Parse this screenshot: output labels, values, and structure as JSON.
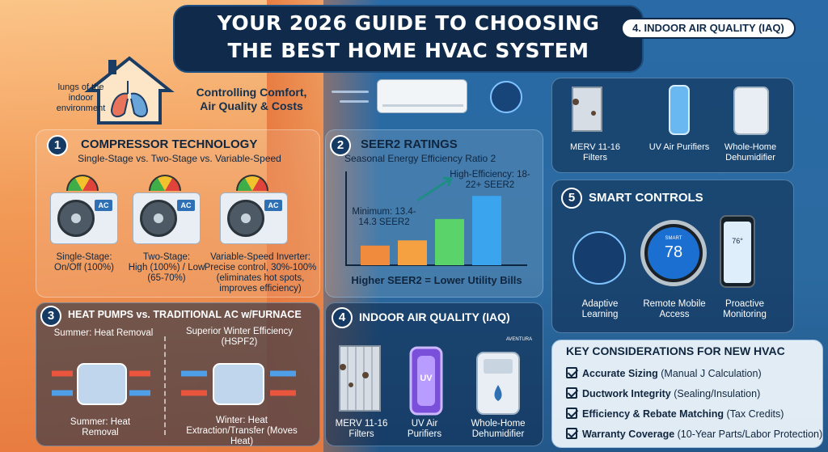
{
  "title": {
    "line1": "YOUR 2026 GUIDE TO CHOOSING",
    "line2": "THE BEST HOME HVAC SYSTEM"
  },
  "header_tag": "4. INDOOR AIR QUALITY (IAQ)",
  "intro": {
    "house_text": "lungs of the indoor environment",
    "subtitle": "Controlling Comfort, Air Quality & Costs"
  },
  "compressor": {
    "number": "1",
    "title": "COMPRESSOR TECHNOLOGY",
    "subtitle": "Single-Stage vs. Two-Stage vs. Variable-Speed",
    "units": [
      {
        "badge": "AC",
        "name": "Single-Stage:",
        "desc": "On/Off (100%)"
      },
      {
        "badge": "AC",
        "name": "Two-Stage:",
        "desc": "High (100%) / Low (65-70%)"
      },
      {
        "badge": "AC",
        "name": "Variable-Speed Inverter:",
        "desc": "Precise control, 30%-100% (eliminates hot spots, improves efficiency)"
      }
    ]
  },
  "seer": {
    "number": "2",
    "title": "SEER2 RATINGS",
    "subtitle": "Seasonal Energy Efficiency Ratio 2",
    "minimum": "Minimum: 13.4-14.3 SEER2",
    "high": "High-Efficiency: 18-22+ SEER2",
    "footer": "Higher SEER2 = Lower Utility Bills",
    "bars": [
      {
        "value": 13.4,
        "color": "#f08a3c"
      },
      {
        "value": 14.3,
        "color": "#f5a142"
      },
      {
        "value": 18,
        "color": "#59d36a"
      },
      {
        "value": 22,
        "color": "#3aa4ef"
      }
    ]
  },
  "heat_pumps": {
    "number": "3",
    "title": "HEAT PUMPS vs. TRADITIONAL AC w/FURNACE",
    "left_top": "Summer: Heat Removal",
    "left_bottom": "Summer: Heat Removal",
    "right_top": "Superior Winter Efficiency (HSPF2)",
    "right_bottom": "Winter: Heat Extraction/Transfer (Moves Heat)"
  },
  "iaq": {
    "number": "4",
    "title": "INDOOR AIR QUALITY (IAQ)",
    "items": [
      {
        "label": "MERV 11-16 Filters"
      },
      {
        "label": "UV Air Purifiers"
      },
      {
        "label": "Whole-Home Dehumidifier"
      }
    ],
    "uv_text": "UV",
    "logo_text": "AVENTURA"
  },
  "iaq_top": {
    "items": [
      {
        "label": "MERV 11-16 Filters"
      },
      {
        "label": "UV Air Purifiers"
      },
      {
        "label": "Whole-Home Dehumidifier"
      }
    ]
  },
  "smart": {
    "number": "5",
    "title": "SMART CONTROLS",
    "items": [
      {
        "label": "Adaptive Learning"
      },
      {
        "label": "Remote Mobile Access"
      },
      {
        "label": "Proactive Monitoring"
      }
    ],
    "thermostat_value": "78",
    "thermostat_small": "SMART",
    "phone_value": "76°"
  },
  "key": {
    "title": "KEY CONSIDERATIONS FOR NEW HVAC",
    "items": [
      {
        "bold": "Accurate Sizing",
        "rest": " (Manual J Calculation)"
      },
      {
        "bold": "Ductwork Integrity",
        "rest": " (Sealing/Insulation)"
      },
      {
        "bold": "Efficiency & Rebate Matching",
        "rest": " (Tax Credits)"
      },
      {
        "bold": "Warranty Coverage",
        "rest": " (10-Year Parts/Labor Protection)"
      }
    ]
  },
  "colors": {
    "orange": "#ee8747",
    "navy": "#0f2a4a",
    "blue": "#2b6aa6"
  }
}
